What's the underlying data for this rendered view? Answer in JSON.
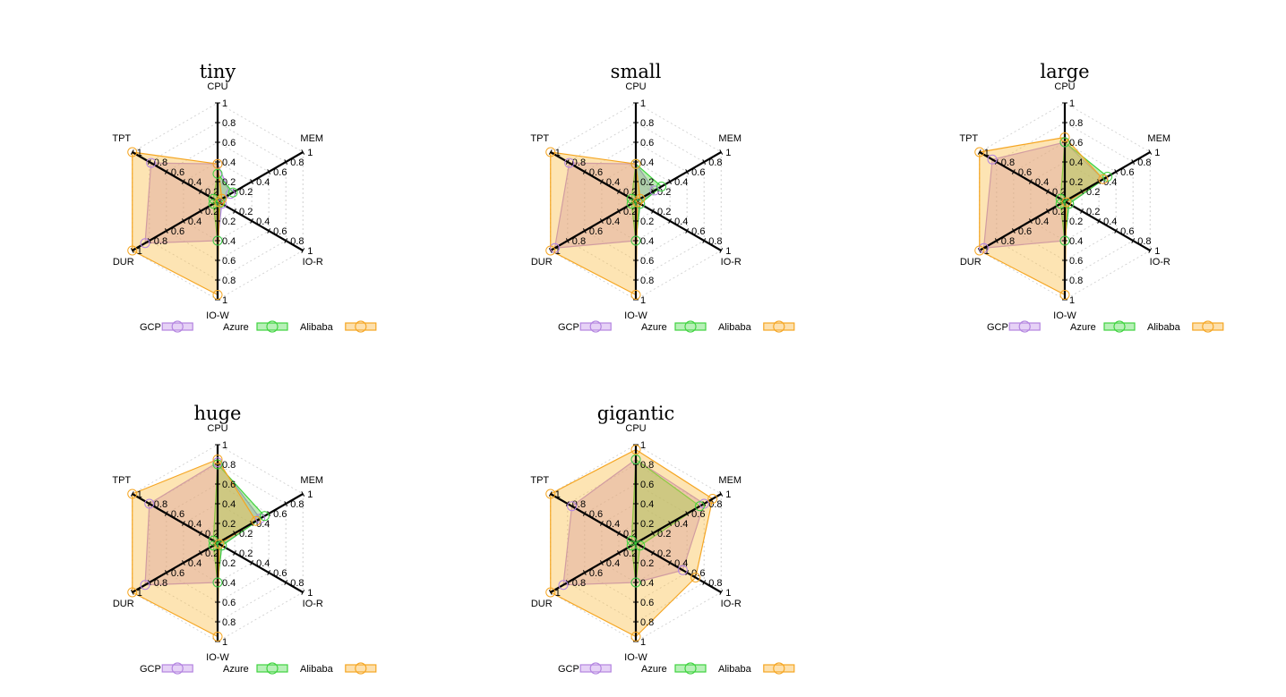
{
  "chart_data": [
    {
      "type": "radar",
      "title": "tiny",
      "axes": [
        "CPU",
        "MEM",
        "IO-R",
        "IO-W",
        "DUR",
        "TPT"
      ],
      "ticks": [
        "0.2",
        "0.4",
        "0.6",
        "0.8",
        "1"
      ],
      "range": [
        0,
        1
      ],
      "series": [
        {
          "name": "GCP",
          "values": [
            0.38,
            0.15,
            0.05,
            0.4,
            0.85,
            0.78
          ]
        },
        {
          "name": "Azure",
          "values": [
            0.28,
            0.18,
            0.03,
            0.4,
            0.05,
            0.05
          ]
        },
        {
          "name": "Alibaba",
          "values": [
            0.38,
            0.05,
            0.02,
            0.95,
            1.0,
            1.0
          ]
        }
      ]
    },
    {
      "type": "radar",
      "title": "small",
      "axes": [
        "CPU",
        "MEM",
        "IO-R",
        "IO-W",
        "DUR",
        "TPT"
      ],
      "ticks": [
        "0.2",
        "0.4",
        "0.6",
        "0.8",
        "1"
      ],
      "range": [
        0,
        1
      ],
      "series": [
        {
          "name": "GCP",
          "values": [
            0.38,
            0.22,
            0.05,
            0.4,
            0.95,
            0.78
          ]
        },
        {
          "name": "Azure",
          "values": [
            0.38,
            0.3,
            0.05,
            0.4,
            0.05,
            0.05
          ]
        },
        {
          "name": "Alibaba",
          "values": [
            0.38,
            0.05,
            0.02,
            0.95,
            1.0,
            1.0
          ]
        }
      ]
    },
    {
      "type": "radar",
      "title": "large",
      "axes": [
        "CPU",
        "MEM",
        "IO-R",
        "IO-W",
        "DUR",
        "TPT"
      ],
      "ticks": [
        "0.2",
        "0.4",
        "0.6",
        "0.8",
        "1"
      ],
      "range": [
        0,
        1
      ],
      "series": [
        {
          "name": "GCP",
          "values": [
            0.6,
            0.45,
            0.05,
            0.4,
            0.95,
            0.85
          ]
        },
        {
          "name": "Azure",
          "values": [
            0.6,
            0.5,
            0.05,
            0.4,
            0.05,
            0.05
          ]
        },
        {
          "name": "Alibaba",
          "values": [
            0.65,
            0.45,
            0.02,
            0.95,
            1.0,
            1.0
          ]
        }
      ]
    },
    {
      "type": "radar",
      "title": "huge",
      "axes": [
        "CPU",
        "MEM",
        "IO-R",
        "IO-W",
        "DUR",
        "TPT"
      ],
      "ticks": [
        "0.2",
        "0.4",
        "0.6",
        "0.8",
        "1"
      ],
      "range": [
        0,
        1
      ],
      "series": [
        {
          "name": "GCP",
          "values": [
            0.82,
            0.5,
            0.05,
            0.4,
            0.85,
            0.8
          ]
        },
        {
          "name": "Azure",
          "values": [
            0.8,
            0.55,
            0.05,
            0.4,
            0.05,
            0.05
          ]
        },
        {
          "name": "Alibaba",
          "values": [
            0.85,
            0.45,
            0.02,
            0.95,
            1.0,
            1.0
          ]
        }
      ]
    },
    {
      "type": "radar",
      "title": "gigantic",
      "axes": [
        "CPU",
        "MEM",
        "IO-R",
        "IO-W",
        "DUR",
        "TPT"
      ],
      "ticks": [
        "0.2",
        "0.4",
        "0.6",
        "0.8",
        "1"
      ],
      "range": [
        0,
        1
      ],
      "series": [
        {
          "name": "GCP",
          "values": [
            0.85,
            0.8,
            0.55,
            0.4,
            0.85,
            0.75
          ]
        },
        {
          "name": "Azure",
          "values": [
            0.85,
            0.75,
            0.05,
            0.4,
            0.05,
            0.05
          ]
        },
        {
          "name": "Alibaba",
          "values": [
            0.95,
            0.9,
            0.7,
            0.95,
            1.0,
            1.0
          ]
        }
      ]
    }
  ],
  "legend": [
    {
      "name": "GCP",
      "stroke": "#b384e0",
      "fill": "#e6d2f6"
    },
    {
      "name": "Azure",
      "stroke": "#3fd33f",
      "fill": "#b8f0b8"
    },
    {
      "name": "Alibaba",
      "stroke": "#f5a623",
      "fill": "#fde0ad"
    }
  ],
  "series_fill_colors": {
    "GCP": "#c28ad6",
    "Azure": "#63d24e",
    "Alibaba": "#fbbf49"
  }
}
